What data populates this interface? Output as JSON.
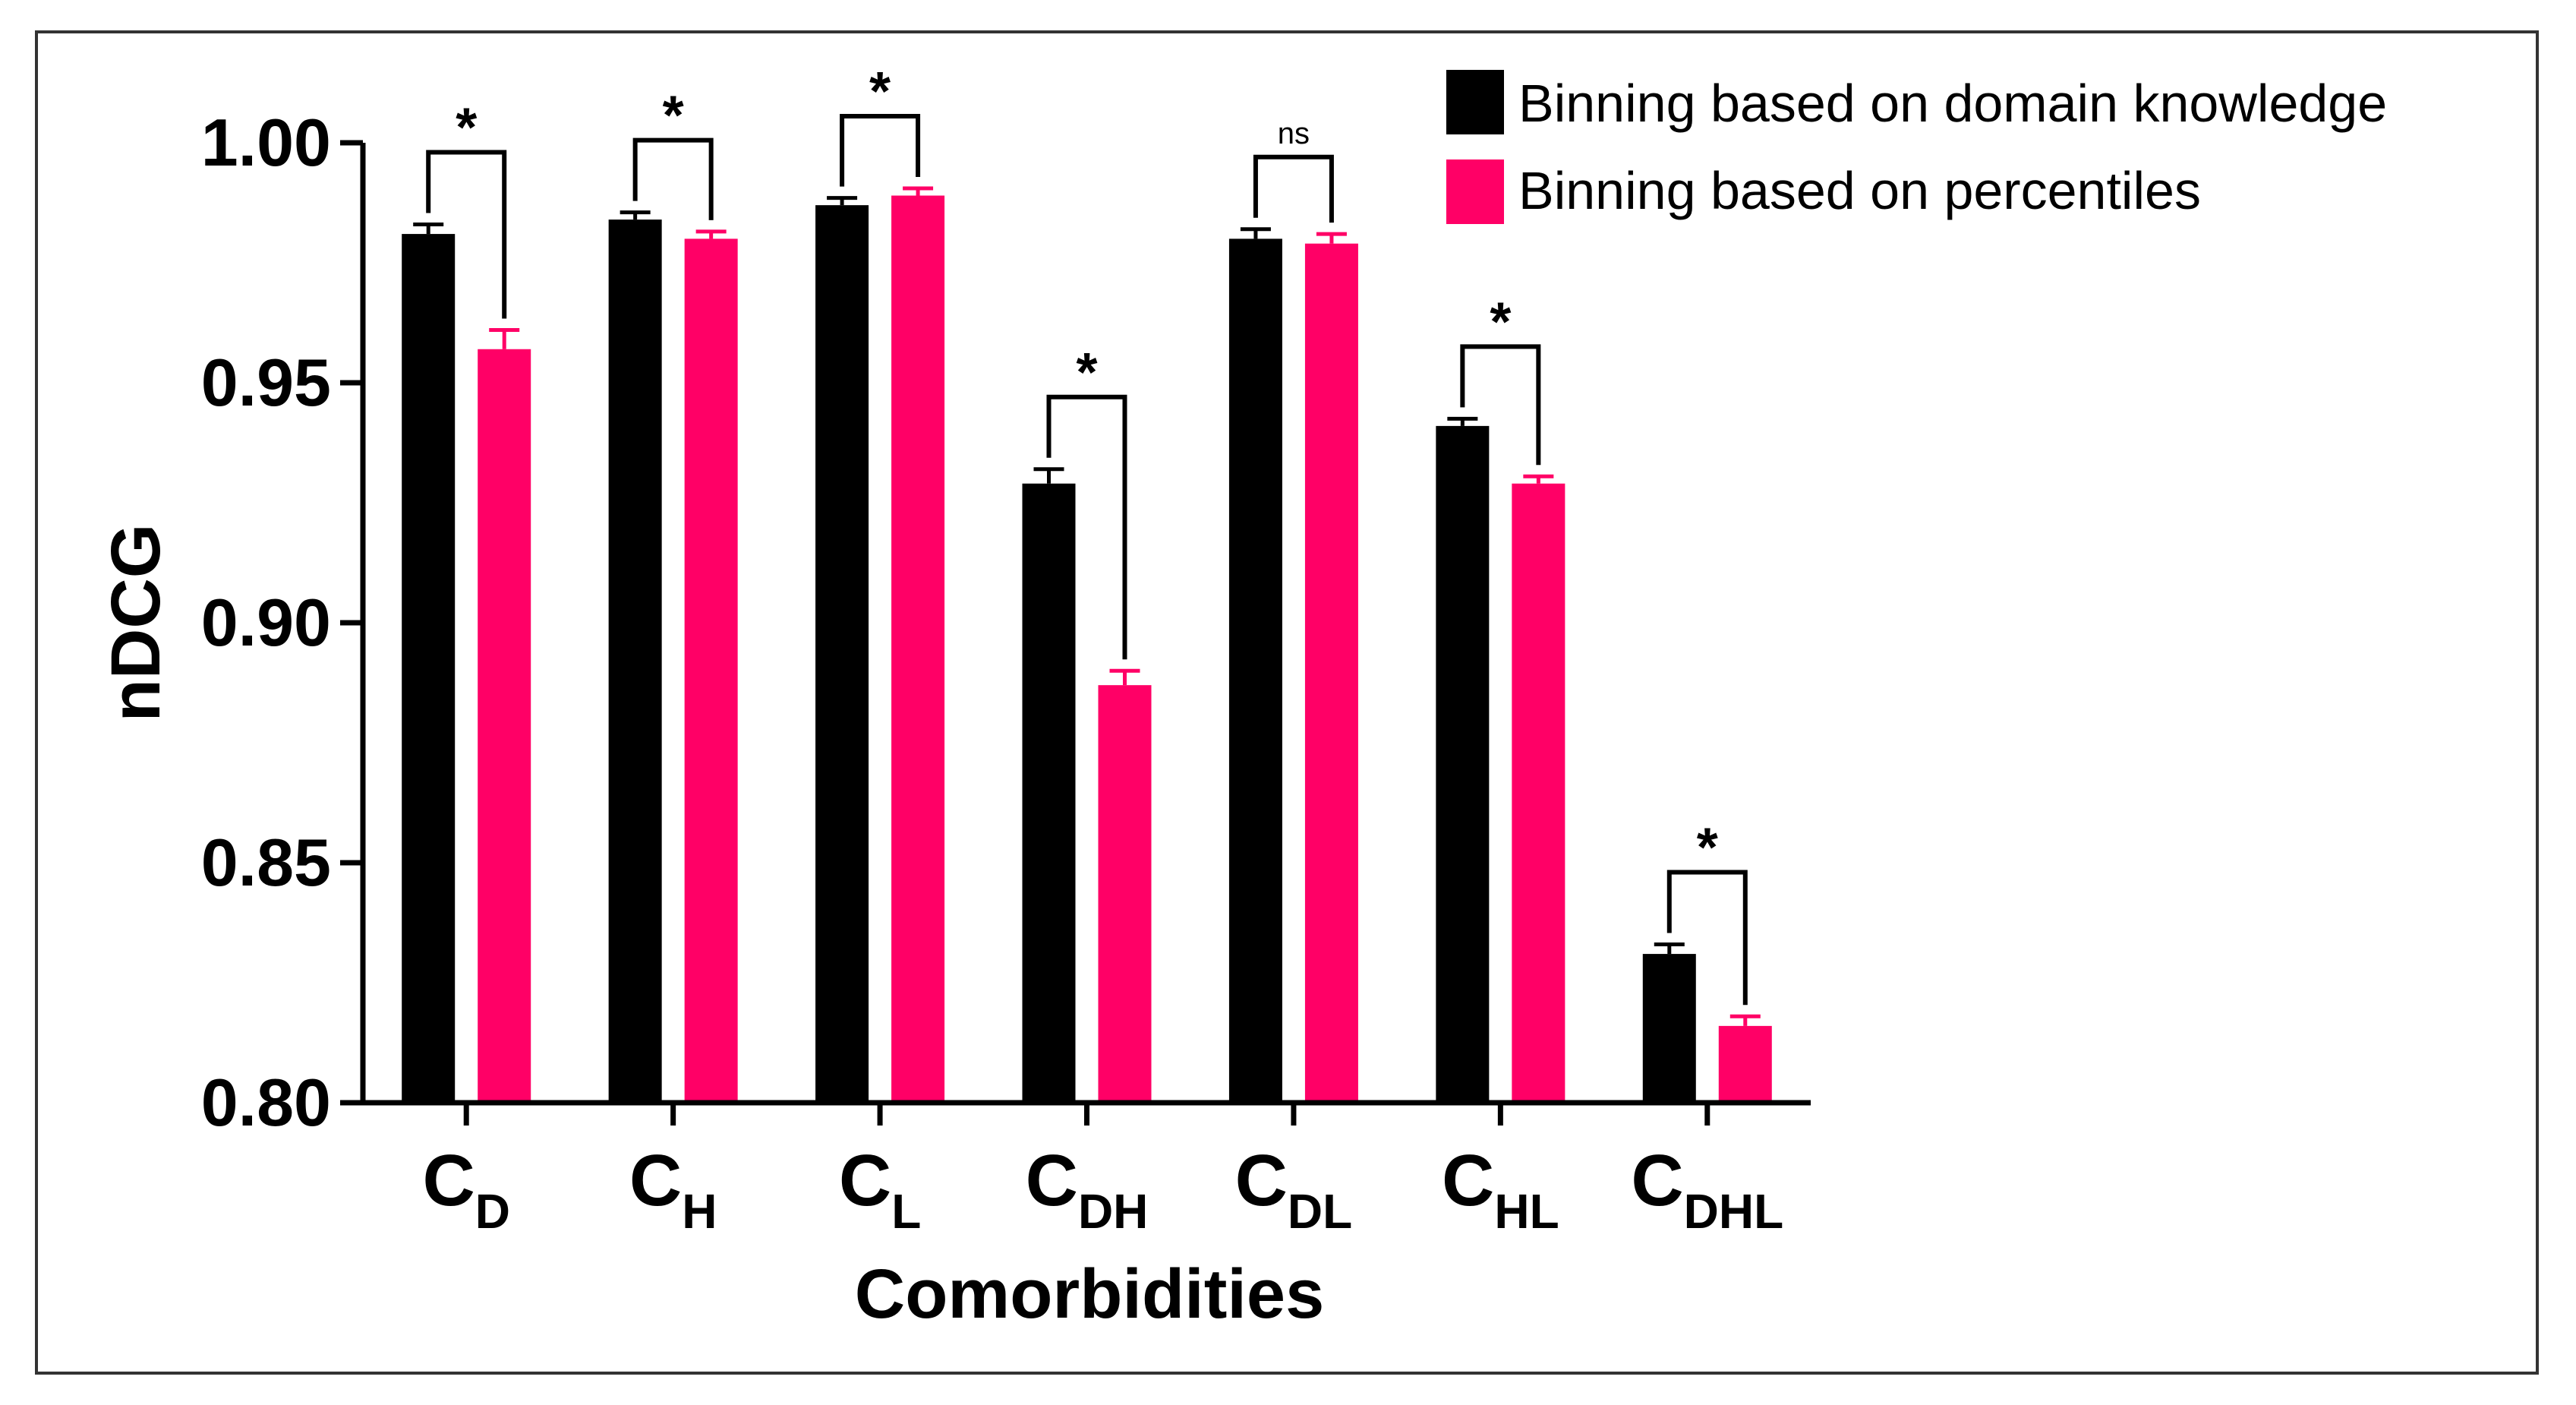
{
  "chart_data": {
    "type": "bar",
    "xlabel": "Comorbidities",
    "ylabel": "nDCG",
    "ylim": [
      0.8,
      1.0
    ],
    "yticks": [
      "0.80",
      "0.85",
      "0.90",
      "0.95",
      "1.00"
    ],
    "grid": false,
    "legend_position": "top-right",
    "categories": [
      {
        "main": "C",
        "sub": "D"
      },
      {
        "main": "C",
        "sub": "H"
      },
      {
        "main": "C",
        "sub": "L"
      },
      {
        "main": "C",
        "sub": "DH"
      },
      {
        "main": "C",
        "sub": "DL"
      },
      {
        "main": "C",
        "sub": "HL"
      },
      {
        "main": "C",
        "sub": "DHL"
      }
    ],
    "series": [
      {
        "name": "Binning based on domain knowledge",
        "color": "#000000",
        "values": [
          0.981,
          0.984,
          0.987,
          0.929,
          0.98,
          0.941,
          0.831
        ],
        "errors": [
          0.002,
          0.0015,
          0.0015,
          0.003,
          0.002,
          0.0015,
          0.002
        ]
      },
      {
        "name": "Binning based on percentiles",
        "color": "#ff0066",
        "values": [
          0.957,
          0.98,
          0.989,
          0.887,
          0.979,
          0.929,
          0.816
        ],
        "errors": [
          0.004,
          0.0015,
          0.0015,
          0.003,
          0.002,
          0.0015,
          0.002
        ]
      }
    ],
    "significance": [
      "*",
      "*",
      "*",
      "*",
      "ns",
      "*",
      "*"
    ]
  }
}
